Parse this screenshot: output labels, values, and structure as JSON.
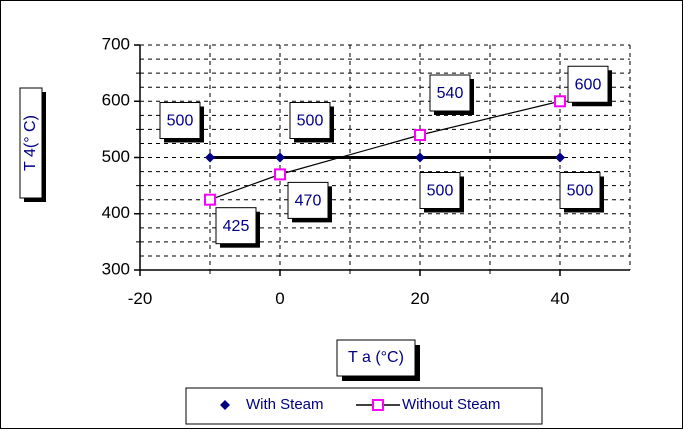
{
  "chart_data": {
    "type": "line",
    "xlabel": "T a (°C)",
    "ylabel": "T 4(° C)",
    "xlim": [
      -20,
      50
    ],
    "ylim": [
      300,
      700
    ],
    "x_ticks": [
      -20,
      0,
      20,
      40
    ],
    "y_ticks": [
      300,
      400,
      500,
      600,
      700
    ],
    "x_ticks_labels": [
      "-20",
      "0",
      "20",
      "40"
    ],
    "y_ticks_labels": [
      "300",
      "400",
      "500",
      "600",
      "700"
    ],
    "grid": true,
    "legend_position": "bottom",
    "series": [
      {
        "name": "With Steam",
        "marker": "diamond",
        "color": "#000080",
        "x": [
          -10,
          0,
          20,
          40
        ],
        "y": [
          500,
          500,
          500,
          500
        ],
        "data_labels": [
          "500",
          "500",
          "500",
          "500"
        ]
      },
      {
        "name": "Without Steam",
        "marker": "square",
        "color": "#ff00ff",
        "x": [
          -10,
          0,
          20,
          40
        ],
        "y": [
          425,
          470,
          540,
          600
        ],
        "data_labels": [
          "425",
          "470",
          "540",
          "600"
        ]
      }
    ]
  }
}
